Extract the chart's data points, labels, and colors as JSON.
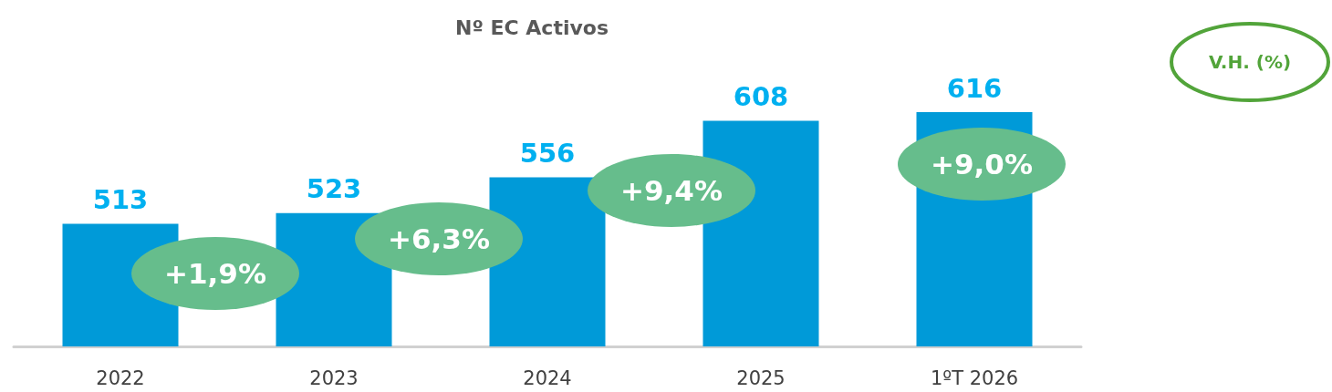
{
  "chart_data": {
    "type": "bar",
    "title": "Nº EC Activos",
    "categories": [
      "2022",
      "2023",
      "2024",
      "2025",
      "1ºT 2026"
    ],
    "values": [
      513,
      523,
      556,
      608,
      616
    ],
    "color": "#009ad8",
    "ylim": [
      400,
      616
    ],
    "data_labels": true,
    "grid": false,
    "tick_labels": "x",
    "annotations": [
      "+1,9%",
      "+6,3%",
      "+9,4%",
      "+9,0%",
      "V.H. (%)"
    ]
  }
}
